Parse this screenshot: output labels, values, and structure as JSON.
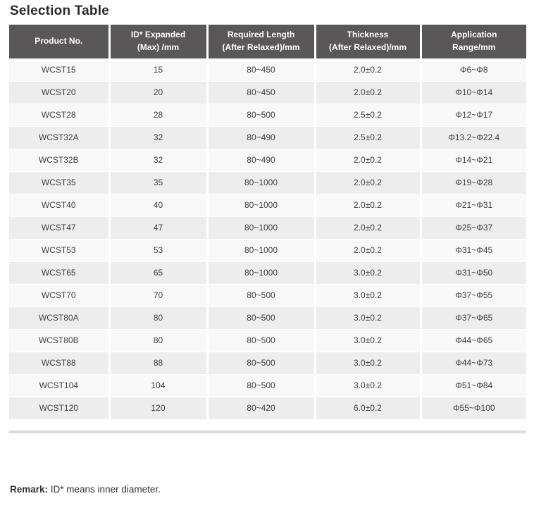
{
  "page": {
    "title": "Selection Table",
    "remark_label": "Remark:",
    "remark_text": " ID* means inner diameter."
  },
  "table": {
    "columns": [
      {
        "label": "Product No."
      },
      {
        "label": "ID* Expanded\n(Max) /mm"
      },
      {
        "label": "Required Length\n(After Relaxed)/mm"
      },
      {
        "label": "Thickness\n(After Relaxed)/mm"
      },
      {
        "label": "Application\nRange/mm"
      }
    ],
    "rows": [
      [
        "WCST15",
        "15",
        "80~450",
        "2.0±0.2",
        "Φ6~Φ8"
      ],
      [
        "WCST20",
        "20",
        "80~450",
        "2.0±0.2",
        "Φ10~Φ14"
      ],
      [
        "WCST28",
        "28",
        "80~500",
        "2.5±0.2",
        "Φ12~Φ17"
      ],
      [
        "WCST32A",
        "32",
        "80~490",
        "2.5±0.2",
        "Φ13.2~Φ22.4"
      ],
      [
        "WCST32B",
        "32",
        "80~490",
        "2.0±0.2",
        "Φ14~Φ21"
      ],
      [
        "WCST35",
        "35",
        "80~1000",
        "2.0±0.2",
        "Φ19~Φ28"
      ],
      [
        "WCST40",
        "40",
        "80~1000",
        "2.0±0.2",
        "Φ21~Φ31"
      ],
      [
        "WCST47",
        "47",
        "80~1000",
        "2.0±0.2",
        "Φ25~Φ37"
      ],
      [
        "WCST53",
        "53",
        "80~1000",
        "2.0±0.2",
        "Φ31~Φ45"
      ],
      [
        "WCST65",
        "65",
        "80~1000",
        "3.0±0.2",
        "Φ31~Φ50"
      ],
      [
        "WCST70",
        "70",
        "80~500",
        "3.0±0.2",
        "Φ37~Φ55"
      ],
      [
        "WCST80A",
        "80",
        "80~500",
        "3.0±0.2",
        "Φ37~Φ65"
      ],
      [
        "WCST80B",
        "80",
        "80~500",
        "3.0±0.2",
        "Φ44~Φ65"
      ],
      [
        "WCST88",
        "88",
        "80~500",
        "3.0±0.2",
        "Φ44~Φ73"
      ],
      [
        "WCST104",
        "104",
        "80~500",
        "3.0±0.2",
        "Φ51~Φ84"
      ],
      [
        "WCST120",
        "120",
        "80~420",
        "6.0±0.2",
        "Φ55~Φ100"
      ]
    ]
  },
  "colors": {
    "header_bg": "#595757",
    "header_text": "#ffffff",
    "row_odd_bg": "#f8f8f8",
    "row_even_bg": "#ededed",
    "cell_text": "#3f3f3f",
    "bottom_bar": "#dcdcdc",
    "title_text": "#2b2b2b"
  }
}
